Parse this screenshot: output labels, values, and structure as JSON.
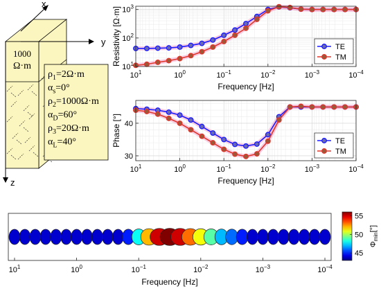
{
  "model": {
    "axis_x": "x",
    "axis_y": "y",
    "axis_z": "z",
    "top_layer_value": "1000",
    "top_layer_unit": "Ω·m",
    "params": [
      {
        "sym": "ρ",
        "sub": "1",
        "rest": "=2Ω·m"
      },
      {
        "sym": "α",
        "sub": "s",
        "rest": "=0°"
      },
      {
        "sym": "ρ",
        "sub": "2",
        "rest": "=1000Ω·m"
      },
      {
        "sym": "α",
        "sub": "D",
        "rest": "=60°"
      },
      {
        "sym": "ρ",
        "sub": "3",
        "rest": "=20Ω·m"
      },
      {
        "sym": "α",
        "sub": "L",
        "rest": "=40°"
      }
    ],
    "colors": {
      "block": "#fbf5bf",
      "box": "#fbf5bf",
      "edge": "#000000"
    }
  },
  "chart_data": [
    {
      "type": "line",
      "ylabel": "Resistivity [Ω·m]",
      "xlabel": "Frequency [Hz]",
      "x_scale": "log",
      "x_reversed": true,
      "y_scale": "log",
      "xlim": [
        10,
        0.0001
      ],
      "ylim": [
        10,
        1300
      ],
      "grid": true,
      "legend_position": "bottom-right",
      "x_tick_labels": [
        {
          "v": 10,
          "b": "10",
          "e": "1"
        },
        {
          "v": 1,
          "b": "10",
          "e": "0"
        },
        {
          "v": 0.1,
          "b": "10",
          "e": "−1"
        },
        {
          "v": 0.01,
          "b": "10",
          "e": "−2"
        },
        {
          "v": 0.001,
          "b": "10",
          "e": "−3"
        },
        {
          "v": 0.0001,
          "b": "10",
          "e": "−4"
        }
      ],
      "y_tick_labels": [
        {
          "v": 10,
          "b": "10",
          "e": "1"
        },
        {
          "v": 100,
          "b": "10",
          "e": "2"
        },
        {
          "v": 1000,
          "b": "10",
          "e": "3"
        }
      ],
      "x": [
        10,
        5.62,
        3.16,
        1.78,
        1,
        0.562,
        0.316,
        0.178,
        0.1,
        0.0562,
        0.0316,
        0.0178,
        0.01,
        0.00562,
        0.00316,
        0.00178,
        0.001,
        0.000562,
        0.000316,
        0.000178,
        0.0001
      ],
      "series": [
        {
          "name": "TE",
          "color": "#1a1aff",
          "values": [
            43,
            43,
            44,
            45,
            48,
            55,
            65,
            85,
            125,
            190,
            320,
            570,
            1000,
            1230,
            1150,
            1030,
            1000,
            1000,
            1000,
            1000,
            1000
          ]
        },
        {
          "name": "TM",
          "color": "#e0352b",
          "values": [
            11,
            12,
            14,
            16,
            19,
            24,
            33,
            48,
            75,
            125,
            220,
            450,
            900,
            1250,
            1170,
            1030,
            1000,
            1000,
            1000,
            1000,
            1000
          ]
        }
      ]
    },
    {
      "type": "line",
      "ylabel": "Phase [°]",
      "xlabel": "Frequency [Hz]",
      "x_scale": "log",
      "x_reversed": true,
      "xlim": [
        10,
        0.0001
      ],
      "ylim": [
        28.5,
        47
      ],
      "grid": true,
      "legend_position": "bottom-right",
      "x_tick_labels": [
        {
          "v": 10,
          "b": "10",
          "e": "1"
        },
        {
          "v": 1,
          "b": "10",
          "e": "0"
        },
        {
          "v": 0.1,
          "b": "10",
          "e": "−1"
        },
        {
          "v": 0.01,
          "b": "10",
          "e": "−2"
        },
        {
          "v": 0.001,
          "b": "10",
          "e": "−3"
        },
        {
          "v": 0.0001,
          "b": "10",
          "e": "−4"
        }
      ],
      "y_tick_labels": [
        {
          "v": 30,
          "t": "30"
        },
        {
          "v": 40,
          "t": "40"
        }
      ],
      "x": [
        10,
        5.62,
        3.16,
        1.78,
        1,
        0.562,
        0.316,
        0.178,
        0.1,
        0.0562,
        0.0316,
        0.0178,
        0.01,
        0.00562,
        0.00316,
        0.00178,
        0.001,
        0.000562,
        0.000316,
        0.000178,
        0.0001
      ],
      "series": [
        {
          "name": "TE",
          "color": "#1a1aff",
          "values": [
            44.5,
            44.3,
            44,
            43.4,
            42.5,
            41,
            39,
            37,
            35,
            33.5,
            33,
            33.6,
            36.5,
            42,
            45,
            45,
            45,
            45,
            45,
            45,
            45
          ]
        },
        {
          "name": "TM",
          "color": "#e0352b",
          "values": [
            44,
            43.6,
            42.8,
            41.5,
            40,
            38,
            36,
            34,
            32,
            30.5,
            29.8,
            30.6,
            34.5,
            41,
            45,
            45.2,
            45,
            45,
            45,
            45,
            45
          ]
        }
      ]
    },
    {
      "type": "scatter",
      "xlabel": "Frequency [Hz]",
      "x_scale": "log",
      "x_reversed": true,
      "xlim": [
        12.6,
        7.94e-05
      ],
      "grid": false,
      "x_tick_labels": [
        {
          "v": 10,
          "b": "10",
          "e": "1"
        },
        {
          "v": 1,
          "b": "10",
          "e": "0"
        },
        {
          "v": 0.1,
          "b": "10",
          "e": "−1"
        },
        {
          "v": 0.01,
          "b": "10",
          "e": "−2"
        },
        {
          "v": 0.001,
          "b": "10",
          "e": "−3"
        },
        {
          "v": 0.0001,
          "b": "10",
          "e": "−4"
        }
      ],
      "x": [
        10,
        6.81,
        4.64,
        3.16,
        2.15,
        1.47,
        1,
        0.681,
        0.464,
        0.316,
        0.215,
        0.147,
        0.1,
        0.0681,
        0.0464,
        0.0316,
        0.0215,
        0.0147,
        0.01,
        0.00681,
        0.00464,
        0.00316,
        0.00215,
        0.00147,
        0.001,
        0.000681,
        0.000464,
        0.000316,
        0.000215,
        0.000147,
        0.0001
      ],
      "phi_min": [
        44,
        44,
        44,
        44,
        44,
        44,
        44,
        44,
        44,
        44,
        44,
        45,
        48,
        52,
        55,
        56,
        55,
        53,
        51,
        49,
        47,
        46,
        45,
        44,
        44,
        44,
        44,
        44,
        44,
        44,
        44
      ],
      "colorbar": {
        "label_sym": "Φ",
        "label_sub": "min",
        "label_rest": "[°]",
        "range": [
          43,
          56
        ],
        "ticks": [
          "45",
          "50",
          "55"
        ],
        "tick_values": [
          45,
          50,
          55
        ]
      }
    }
  ]
}
